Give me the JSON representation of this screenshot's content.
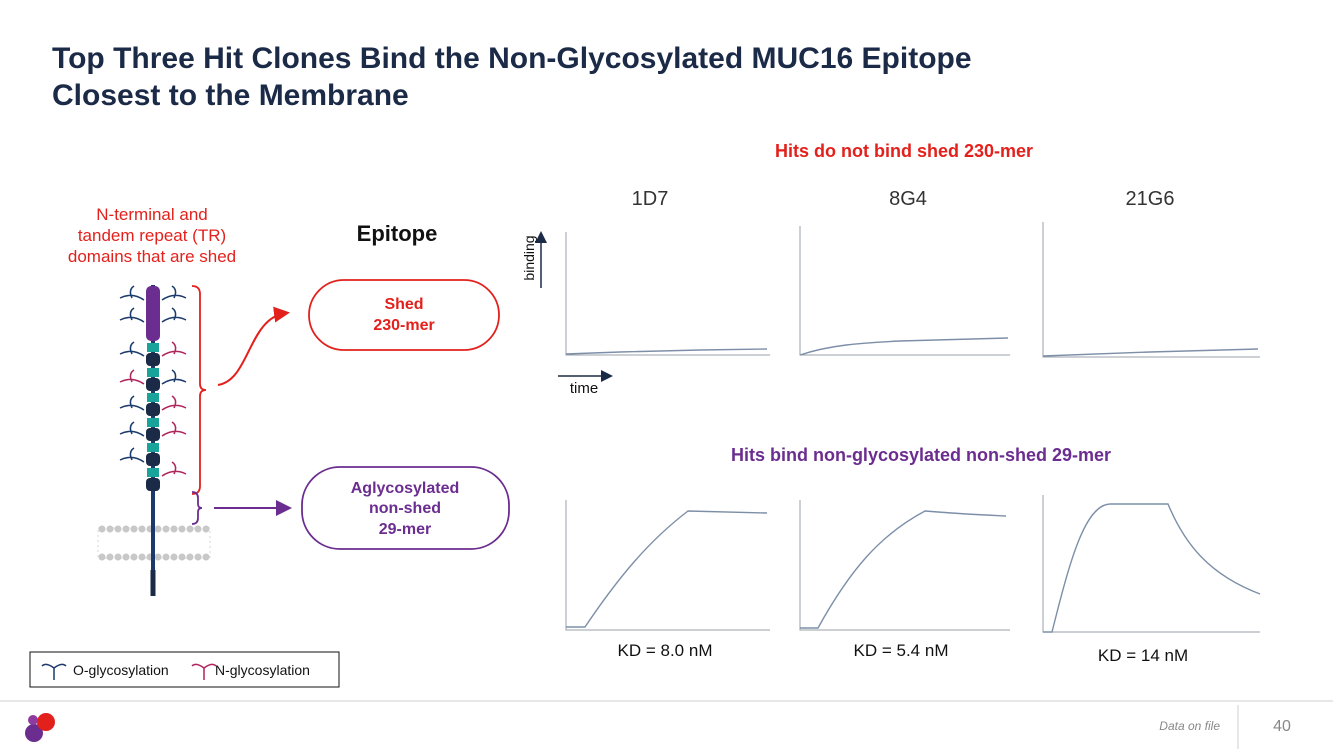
{
  "header": {
    "title_lines": [
      "Top Three Hit Clones Bind the Non-Glycosylated MUC16 Epitope",
      "Closest to the Membrane"
    ]
  },
  "diagram": {
    "shed_label_lines": [
      "N-terminal and",
      "tandem repeat (TR)",
      "domains that are shed"
    ],
    "epitope_heading": "Epitope",
    "shed_box_lines": [
      "Shed",
      "230-mer"
    ],
    "aglyco_box_lines": [
      "Aglycosylated",
      "non-shed",
      "29-mer"
    ],
    "legend": [
      "O-glycosylation",
      "N-glycosylation"
    ]
  },
  "plots": {
    "top_heading": "Hits do not bind shed 230-mer",
    "clones": [
      "1D7",
      "8G4",
      "21G6"
    ],
    "y_axis": "binding",
    "x_axis": "time",
    "bottom_heading": "Hits bind non-glycosylated non-shed 29-mer",
    "kd": [
      "KD = 8.0 nM",
      "KD = 5.4 nM",
      "KD = 14 nM"
    ]
  },
  "footer": {
    "note": "Data on file",
    "page": "40"
  }
}
